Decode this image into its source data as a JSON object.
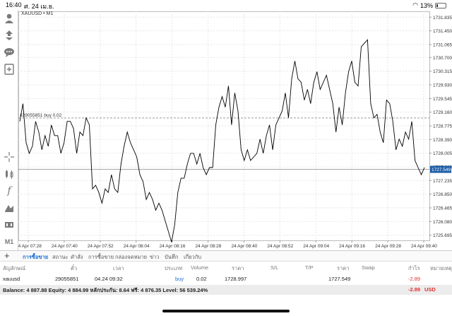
{
  "status": {
    "time": "16:40",
    "date": "ศ. 24 เม.ย.",
    "battery": "13%"
  },
  "chart": {
    "symbol_label": "XAUUSD • M1",
    "order_line_label": "#29055851 buy 0.02",
    "current_price_tag": "1727.549"
  },
  "chart_data": {
    "type": "line",
    "title": "XAUUSD, M1",
    "x_ticks": [
      "24 Apr 07:28",
      "24 Apr 07:40",
      "24 Apr 07:52",
      "24 Apr 08:04",
      "24 Apr 08:16",
      "24 Apr 08:28",
      "24 Apr 08:40",
      "24 Apr 08:52",
      "24 Apr 09:04",
      "24 Apr 09:16",
      "24 Apr 09:28",
      "24 Apr 09:40"
    ],
    "y_ticks": [
      "1731.835",
      "1731.450",
      "1731.065",
      "1730.700",
      "1730.315",
      "1729.930",
      "1729.545",
      "1729.160",
      "1728.775",
      "1728.390",
      "1728.005",
      "1727.620",
      "1727.235",
      "1726.850",
      "1726.465",
      "1726.080",
      "1725.695"
    ],
    "ylim": [
      1725.55,
      1732.0
    ],
    "order_price": 1728.997,
    "current_price": 1727.549,
    "values": [
      1728.9,
      1729.4,
      1728.3,
      1728.0,
      1728.2,
      1728.9,
      1728.6,
      1728.1,
      1728.5,
      1728.2,
      1728.8,
      1728.5,
      1728.5,
      1728.0,
      1728.3,
      1728.9,
      1728.9,
      1728.7,
      1728.0,
      1728.6,
      1728.5,
      1729.0,
      1728.8,
      1727.0,
      1727.1,
      1726.9,
      1726.6,
      1727.0,
      1726.9,
      1727.4,
      1727.0,
      1726.9,
      1727.7,
      1728.2,
      1728.6,
      1728.3,
      1728.1,
      1727.9,
      1727.4,
      1727.2,
      1726.7,
      1726.9,
      1726.7,
      1726.4,
      1726.6,
      1726.4,
      1726.1,
      1725.8,
      1725.5,
      1726.0,
      1726.9,
      1727.3,
      1727.3,
      1727.7,
      1728.0,
      1728.0,
      1727.7,
      1728.0,
      1727.6,
      1727.4,
      1727.6,
      1727.6,
      1728.8,
      1729.3,
      1729.6,
      1729.3,
      1729.9,
      1728.8,
      1729.7,
      1729.2,
      1728.1,
      1727.8,
      1728.1,
      1727.8,
      1727.9,
      1728.0,
      1728.4,
      1728.0,
      1728.5,
      1728.8,
      1728.1,
      1728.8,
      1729.0,
      1729.2,
      1729.7,
      1729.0,
      1730.1,
      1730.6,
      1730.1,
      1730.0,
      1729.5,
      1729.8,
      1729.4,
      1730.0,
      1730.3,
      1729.8,
      1730.0,
      1730.2,
      1729.8,
      1729.4,
      1728.6,
      1729.3,
      1728.8,
      1729.7,
      1730.3,
      1730.6,
      1730.0,
      1729.9,
      1731.0,
      1731.1,
      1731.2,
      1729.4,
      1729.0,
      1729.1,
      1728.6,
      1728.3,
      1729.5,
      1729.4,
      1728.9,
      1728.1,
      1728.4,
      1728.2,
      1728.6,
      1728.4,
      1728.9,
      1727.8,
      1727.6,
      1727.4,
      1727.6
    ],
    "grid": true,
    "color": "#000000"
  },
  "leftbar_icons": [
    "user-icon",
    "trade-icon",
    "chat-icon",
    "add-chart-icon",
    "crosshair-icon",
    "candles-icon",
    "function-icon",
    "objects-icon",
    "timeframe-icon",
    "period-m1-label"
  ],
  "period_label": "M1",
  "tabs": [
    "การซื้อขาย",
    "สถานะ",
    "คำสั่ง",
    "การซื้อขาย",
    "กล่องจดหมาย",
    "ข่าว",
    "บันทึก",
    "เกี่ยวกับ"
  ],
  "table": {
    "headers": [
      "สัญลักษณ์",
      "ตั๋ว",
      "เวลา",
      "ประเภท",
      "Volume",
      "ราคา",
      "S/L",
      "T/P",
      "ราคา",
      "Swap",
      "กำไร",
      "หมายเหตุ"
    ],
    "row": {
      "symbol": "xauusd",
      "ticket": "29055851",
      "time": "04.24 09:32",
      "type": "buy",
      "volume": "0.02",
      "open_price": "1728.997",
      "sl": "",
      "tp": "",
      "current_price": "1727.549",
      "swap": "",
      "profit": "-2.89",
      "comment": ""
    }
  },
  "balance": {
    "text": "Balance: 4 887.88 Equity: 4 884.99 หลักประกัน: 8.64 ฟรี: 4 876.35 Level: 56 539.24%",
    "profit": "-2.89",
    "currency": "USD"
  },
  "colors": {
    "accent": "#1f6fd6",
    "negative": "#e03030",
    "price_tag": "#1f5fa8"
  }
}
